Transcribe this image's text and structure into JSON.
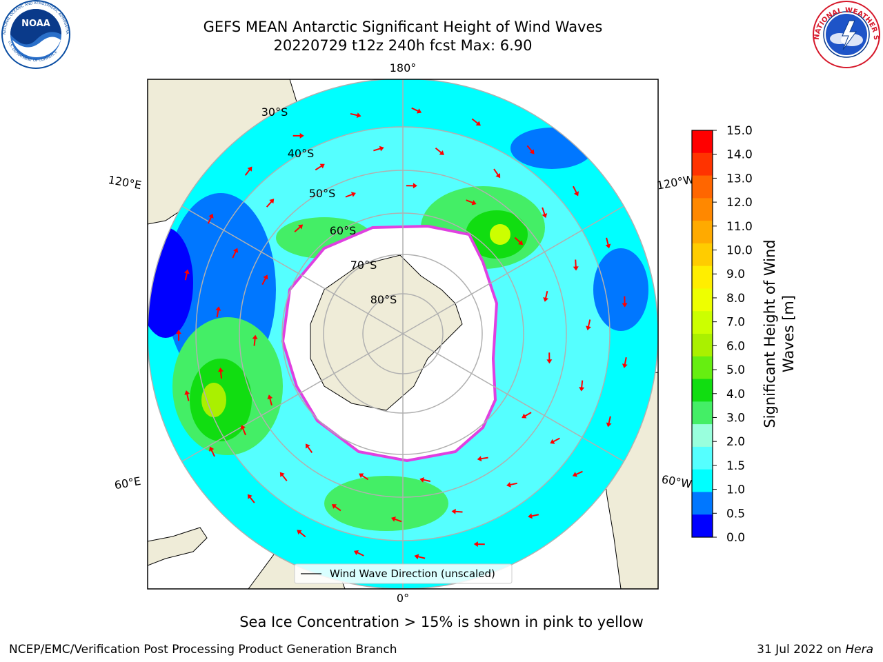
{
  "title": {
    "line1": "GEFS MEAN Antarctic Significant Height of Wind Waves",
    "line2": "20220729 t12z 240h fcst   Max: 6.90"
  },
  "logos": {
    "left": {
      "name": "NOAA",
      "ring_text": "NATIONAL OCEANIC AND ATMOSPHERIC ADMINISTRATION · U.S. DEPARTMENT OF COMMERCE",
      "color": "#0a4da2"
    },
    "right": {
      "name": "NATIONAL WEATHER SERVICE",
      "color": "#d6182a"
    }
  },
  "map": {
    "projection": "South Polar Stereographic",
    "longitude_labels": [
      "180°",
      "120°E",
      "120°W",
      "60°E",
      "60°W",
      "0°"
    ],
    "latitude_labels": [
      "30°S",
      "40°S",
      "50°S",
      "60°S",
      "70°S",
      "80°S"
    ],
    "legend": {
      "label": "Wind Wave Direction (unscaled)"
    },
    "colors": {
      "land": "#efecd8",
      "ice_edge": "#e040e0",
      "arrow": "#ff0000",
      "grid": "#b0b0b0"
    }
  },
  "colorbar": {
    "label": "Significant Height of Wind Waves [m]",
    "label_line1": "Significant Height of Wind",
    "label_line2": "Waves [m]",
    "ticks": [
      "15.0",
      "14.0",
      "13.0",
      "12.0",
      "11.0",
      "10.0",
      "9.0",
      "8.0",
      "7.0",
      "6.0",
      "5.0",
      "4.0",
      "3.0",
      "2.0",
      "1.5",
      "1.0",
      "0.5",
      "0.0"
    ],
    "colors_top_to_bottom": [
      "#ff0000",
      "#ff3300",
      "#ff6600",
      "#ff8800",
      "#ffaa00",
      "#ffcc00",
      "#ffee00",
      "#eeff00",
      "#ccff00",
      "#aaf000",
      "#66ee11",
      "#11dd11",
      "#44ee66",
      "#99ffdd",
      "#55ffff",
      "#00ffff",
      "#0077ff",
      "#0000ff"
    ]
  },
  "caption": "Sea Ice Concentration > 15% is shown in pink to yellow",
  "footer": {
    "left": "NCEP/EMC/Verification Post Processing Product Generation Branch",
    "right_date": "31 Jul 2022 on",
    "right_host": "Hera"
  }
}
